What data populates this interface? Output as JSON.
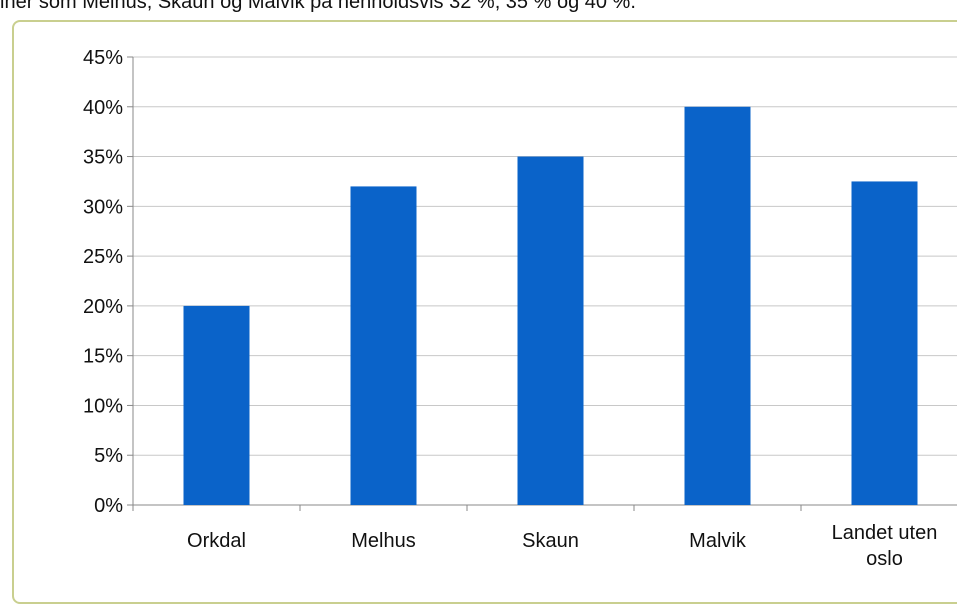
{
  "page": {
    "caption_fragment": "iner som Melhus, Skaun og Malvik på henholdsvis 32 %, 35 % og 40 %."
  },
  "colors": {
    "bar": "#0a63c9",
    "grid": "#c8c8c8",
    "frame": "#c9cf8f"
  },
  "chart_data": {
    "type": "bar",
    "categories": [
      "Orkdal",
      "Melhus",
      "Skaun",
      "Malvik",
      "Landet uten oslo"
    ],
    "category_lines": [
      [
        "Orkdal"
      ],
      [
        "Melhus"
      ],
      [
        "Skaun"
      ],
      [
        "Malvik"
      ],
      [
        "Landet uten",
        "oslo"
      ]
    ],
    "values": [
      20,
      32,
      35,
      40,
      32.5
    ],
    "ylim": [
      0,
      45
    ],
    "ytick_labels": [
      "0%",
      "5%",
      "10%",
      "15%",
      "20%",
      "25%",
      "30%",
      "35%",
      "40%",
      "45%"
    ],
    "grid": true,
    "legend": "none",
    "title": "",
    "xlabel": "",
    "ylabel": ""
  }
}
